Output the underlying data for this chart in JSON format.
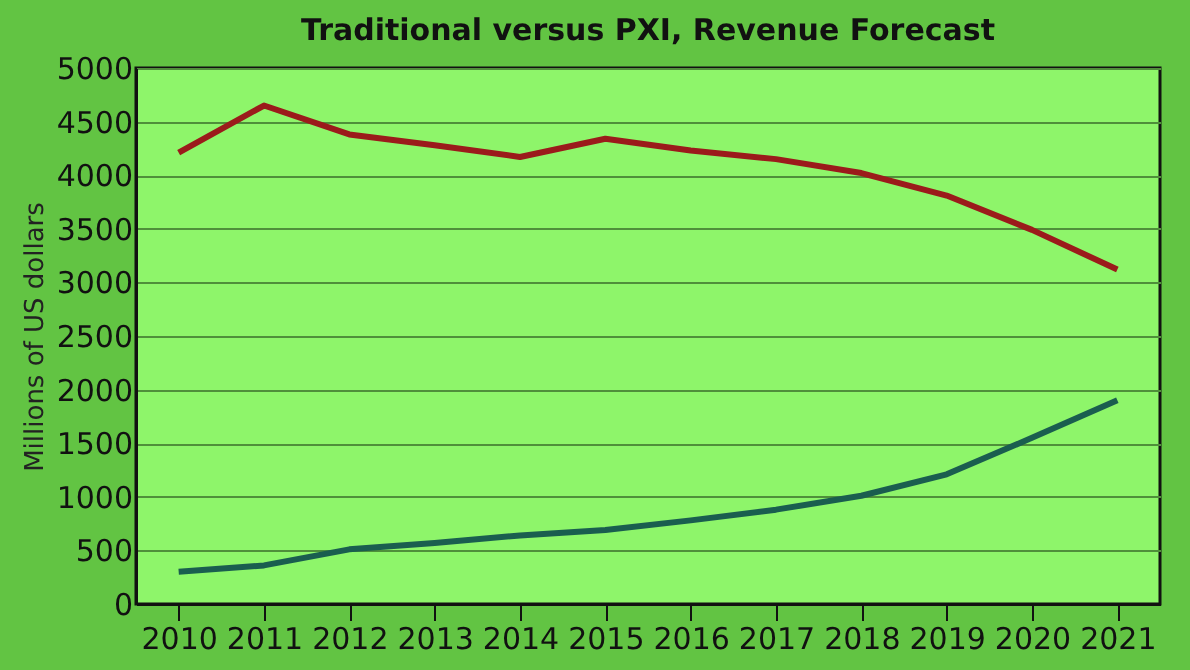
{
  "chart_data": {
    "type": "line",
    "title": "Traditional versus PXI, Revenue Forecast",
    "ylabel": "Millions of US dollars",
    "categories": [
      "2010",
      "2011",
      "2012",
      "2013",
      "2014",
      "2015",
      "2016",
      "2017",
      "2018",
      "2019",
      "2020",
      "2021"
    ],
    "series": [
      {
        "color": "#9b1b1b",
        "values": [
          4210,
          4650,
          4380,
          4280,
          4170,
          4340,
          4230,
          4150,
          4020,
          3810,
          3490,
          3120
        ]
      },
      {
        "color": "#1a5e4f",
        "values": [
          300,
          360,
          510,
          570,
          640,
          690,
          780,
          880,
          1010,
          1210,
          1550,
          1900
        ]
      }
    ],
    "ylim": [
      0,
      5000
    ],
    "yticks": [
      0,
      500,
      1000,
      1500,
      2000,
      2500,
      3000,
      3500,
      4000,
      4500,
      5000
    ],
    "grid": "y",
    "marker": "none",
    "line_style": "solid"
  }
}
